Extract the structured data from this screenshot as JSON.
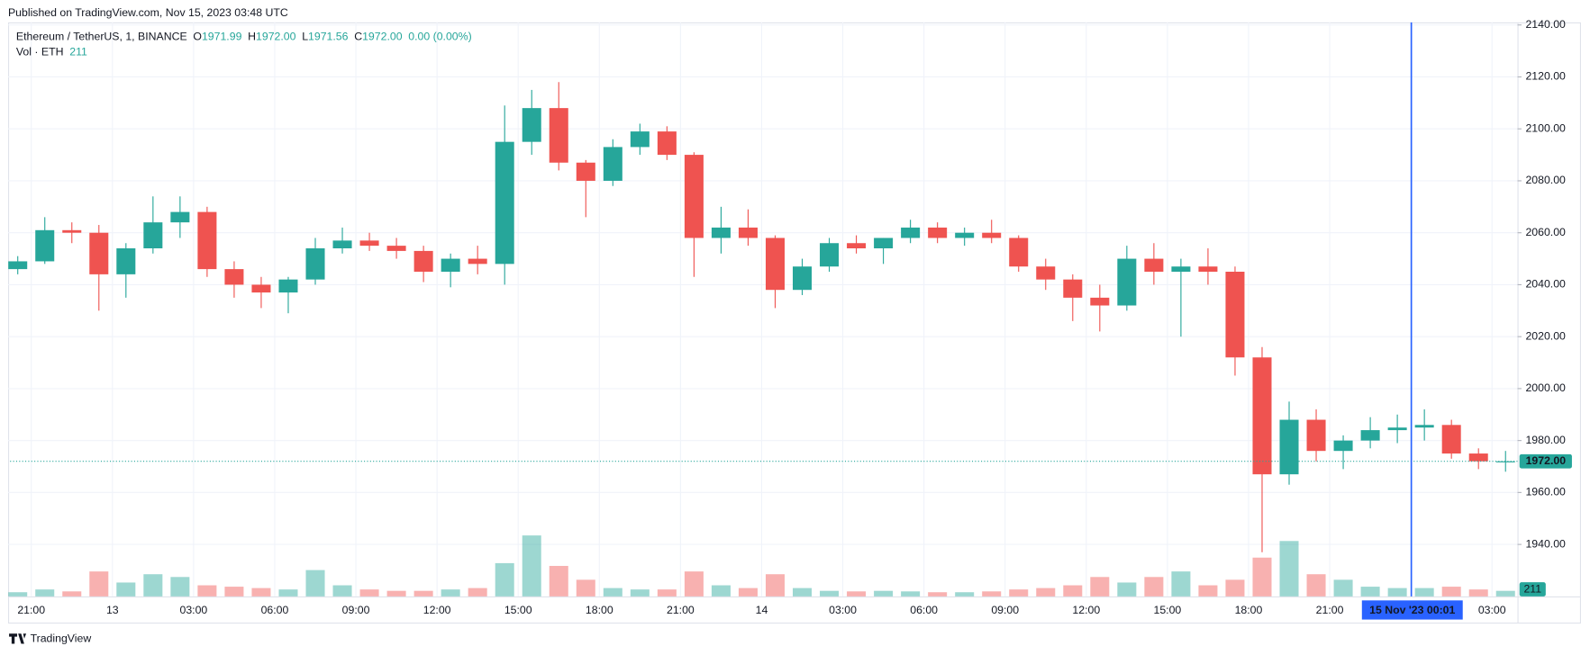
{
  "header": {
    "published": "Published on TradingView.com, Nov 15, 2023 03:48 UTC"
  },
  "legend": {
    "symbol": "Ethereum / TetherUS, 1, BINANCE",
    "o_label": "O",
    "o": "1971.99",
    "h_label": "H",
    "h": "1972.00",
    "l_label": "L",
    "l": "1971.56",
    "c_label": "C",
    "c": "1972.00",
    "change": "0.00 (0.00%)",
    "vol_label": "Vol · ETH",
    "vol": "211"
  },
  "footer": {
    "brand": "TradingView"
  },
  "chart_data": {
    "type": "candlestick",
    "x": [
      "2023-11-12 20:00",
      "2023-11-12 21:00",
      "2023-11-12 22:00",
      "2023-11-12 23:00",
      "2023-11-13 00:00",
      "2023-11-13 01:00",
      "2023-11-13 02:00",
      "2023-11-13 03:00",
      "2023-11-13 04:00",
      "2023-11-13 05:00",
      "2023-11-13 06:00",
      "2023-11-13 07:00",
      "2023-11-13 08:00",
      "2023-11-13 09:00",
      "2023-11-13 10:00",
      "2023-11-13 11:00",
      "2023-11-13 12:00",
      "2023-11-13 13:00",
      "2023-11-13 14:00",
      "2023-11-13 15:00",
      "2023-11-13 16:00",
      "2023-11-13 17:00",
      "2023-11-13 18:00",
      "2023-11-13 19:00",
      "2023-11-13 20:00",
      "2023-11-13 21:00",
      "2023-11-13 22:00",
      "2023-11-13 23:00",
      "2023-11-14 00:00",
      "2023-11-14 01:00",
      "2023-11-14 02:00",
      "2023-11-14 03:00",
      "2023-11-14 04:00",
      "2023-11-14 05:00",
      "2023-11-14 06:00",
      "2023-11-14 07:00",
      "2023-11-14 08:00",
      "2023-11-14 09:00",
      "2023-11-14 10:00",
      "2023-11-14 11:00",
      "2023-11-14 12:00",
      "2023-11-14 13:00",
      "2023-11-14 14:00",
      "2023-11-14 15:00",
      "2023-11-14 16:00",
      "2023-11-14 17:00",
      "2023-11-14 18:00",
      "2023-11-14 19:00",
      "2023-11-14 20:00",
      "2023-11-14 21:00",
      "2023-11-14 22:00",
      "2023-11-14 23:00",
      "2023-11-15 00:00",
      "2023-11-15 01:00",
      "2023-11-15 02:00",
      "2023-11-15 03:00"
    ],
    "open": [
      2046,
      2049,
      2061,
      2060,
      2044,
      2054,
      2064,
      2068,
      2046,
      2040,
      2037,
      2042,
      2054,
      2057,
      2055,
      2053,
      2045,
      2050,
      2048,
      2095,
      2108,
      2087,
      2080,
      2093,
      2099,
      2090,
      2058,
      2062,
      2058,
      2038,
      2047,
      2056,
      2054,
      2058,
      2062,
      2058,
      2060,
      2058,
      2047,
      2042,
      2035,
      2032,
      2050,
      2045,
      2047,
      2045,
      2012,
      1967,
      1988,
      1976,
      1980,
      1984,
      1985,
      1986,
      1975,
      1972
    ],
    "high": [
      2051,
      2066,
      2064,
      2063,
      2056,
      2074,
      2074,
      2070,
      2049,
      2043,
      2043,
      2058,
      2062,
      2060,
      2058,
      2055,
      2052,
      2055,
      2109,
      2115,
      2118,
      2088,
      2096,
      2102,
      2101,
      2091,
      2070,
      2069,
      2059,
      2050,
      2058,
      2059,
      2058,
      2065,
      2064,
      2062,
      2065,
      2059,
      2050,
      2044,
      2040,
      2055,
      2056,
      2050,
      2054,
      2047,
      2016,
      1995,
      1992,
      1982,
      1989,
      1990,
      1992,
      1988,
      1977,
      1976
    ],
    "low": [
      2044,
      2048,
      2056,
      2030,
      2035,
      2052,
      2058,
      2043,
      2035,
      2031,
      2029,
      2040,
      2052,
      2053,
      2050,
      2041,
      2039,
      2044,
      2040,
      2090,
      2084,
      2066,
      2078,
      2090,
      2088,
      2043,
      2052,
      2055,
      2031,
      2036,
      2045,
      2052,
      2048,
      2056,
      2056,
      2055,
      2056,
      2045,
      2038,
      2026,
      2022,
      2030,
      2040,
      2020,
      2040,
      2005,
      1937,
      1963,
      1972,
      1969,
      1977,
      1979,
      1980,
      1973,
      1969,
      1968
    ],
    "close": [
      2049,
      2061,
      2060,
      2044,
      2054,
      2064,
      2068,
      2046,
      2040,
      2037,
      2042,
      2054,
      2057,
      2055,
      2053,
      2045,
      2050,
      2048,
      2095,
      2108,
      2087,
      2080,
      2093,
      2099,
      2090,
      2058,
      2062,
      2058,
      2038,
      2047,
      2056,
      2054,
      2058,
      2062,
      2058,
      2060,
      2058,
      2047,
      2042,
      2035,
      2032,
      2050,
      2045,
      2047,
      2045,
      2012,
      1967,
      1988,
      1976,
      1980,
      1984,
      1985,
      1986,
      1975,
      1972,
      1972
    ],
    "volume": [
      1500,
      2500,
      1800,
      9000,
      5000,
      8000,
      7000,
      4000,
      3500,
      3000,
      2500,
      9500,
      4000,
      2500,
      2000,
      2000,
      2500,
      3000,
      12000,
      22000,
      11000,
      6000,
      3000,
      2500,
      2500,
      9000,
      4000,
      3000,
      8000,
      3000,
      2000,
      1800,
      2000,
      1800,
      1500,
      1500,
      1800,
      2500,
      3000,
      4000,
      7000,
      5000,
      7000,
      9000,
      4000,
      6000,
      14000,
      20000,
      8000,
      6000,
      3500,
      3000,
      3000,
      3500,
      2500,
      2000
    ],
    "up_color": "#26a69a",
    "down_color": "#ef5350",
    "xlim": [
      "2023-11-12 20:13",
      "2023-11-15 03:52"
    ],
    "xticks": [
      {
        "value": "2023-11-12 21:00",
        "label": "21:00"
      },
      {
        "value": "2023-11-13 00:00",
        "label": "13"
      },
      {
        "value": "2023-11-13 03:00",
        "label": "03:00"
      },
      {
        "value": "2023-11-13 06:00",
        "label": "06:00"
      },
      {
        "value": "2023-11-13 09:00",
        "label": "09:00"
      },
      {
        "value": "2023-11-13 12:00",
        "label": "12:00"
      },
      {
        "value": "2023-11-13 15:00",
        "label": "15:00"
      },
      {
        "value": "2023-11-13 18:00",
        "label": "18:00"
      },
      {
        "value": "2023-11-13 21:00",
        "label": "21:00"
      },
      {
        "value": "2023-11-14 00:00",
        "label": "14"
      },
      {
        "value": "2023-11-14 03:00",
        "label": "03:00"
      },
      {
        "value": "2023-11-14 06:00",
        "label": "06:00"
      },
      {
        "value": "2023-11-14 09:00",
        "label": "09:00"
      },
      {
        "value": "2023-11-14 12:00",
        "label": "12:00"
      },
      {
        "value": "2023-11-14 15:00",
        "label": "15:00"
      },
      {
        "value": "2023-11-14 18:00",
        "label": "18:00"
      },
      {
        "value": "2023-11-14 21:00",
        "label": "21:00"
      },
      {
        "value": "2023-11-15 03:00",
        "label": "03:00"
      }
    ],
    "ylim": [
      1920,
      2141
    ],
    "yticks": [
      {
        "value": 1940,
        "label": "1940.00"
      },
      {
        "value": 1960,
        "label": "1960.00"
      },
      {
        "value": 1980,
        "label": "1980.00"
      },
      {
        "value": 2000,
        "label": "2000.00"
      },
      {
        "value": 2020,
        "label": "2020.00"
      },
      {
        "value": 2040,
        "label": "2040.00"
      },
      {
        "value": 2060,
        "label": "2060.00"
      },
      {
        "value": 2080,
        "label": "2080.00"
      },
      {
        "value": 2100,
        "label": "2100.00"
      },
      {
        "value": 2120,
        "label": "2120.00"
      },
      {
        "value": 2140,
        "label": "2140.00"
      }
    ],
    "vlim": [
      0,
      40000
    ],
    "grid": true,
    "last_price": {
      "value": 1972,
      "label": "1972.00"
    },
    "last_volume": 211,
    "crosshair": {
      "x": "2023-11-15 00:01",
      "label": "15 Nov '23  00:01",
      "color": "#2962ff"
    }
  }
}
